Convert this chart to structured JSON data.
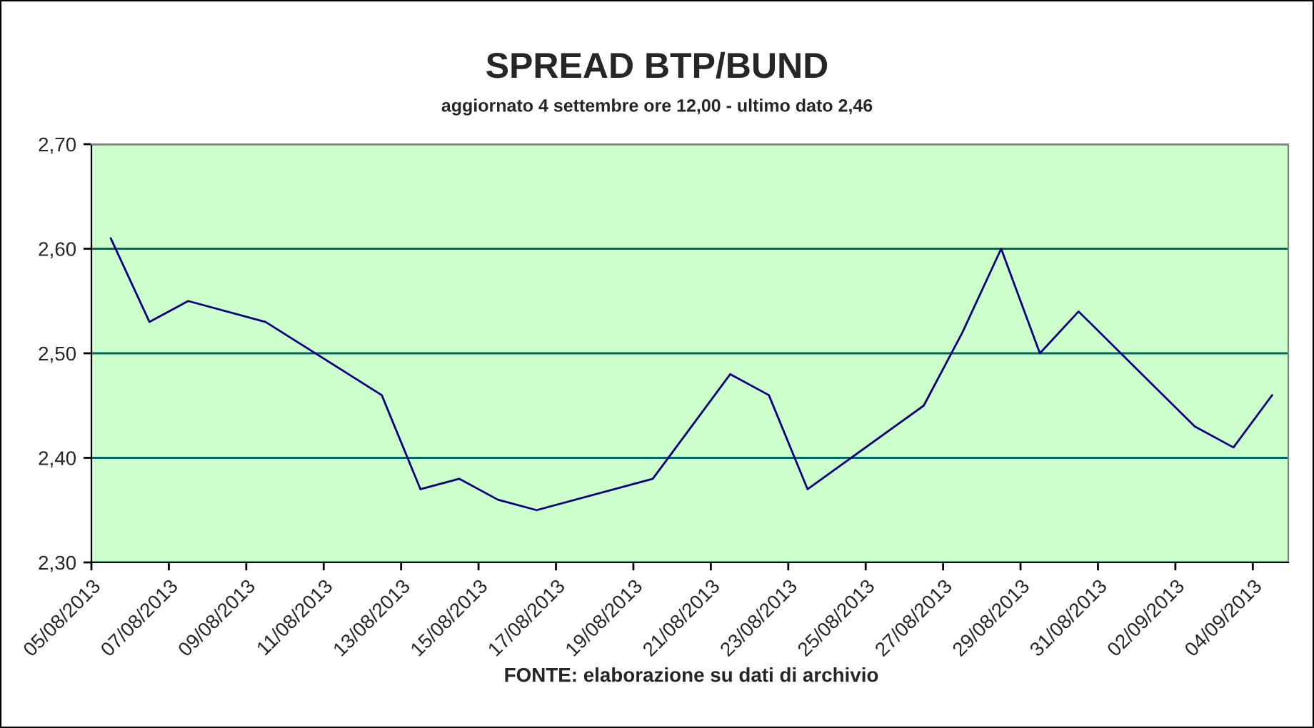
{
  "chart_data": {
    "type": "line",
    "title": "SPREAD BTP/BUND",
    "subtitle": "aggiornato 4 settembre ore 12,00 - ultimo dato 2,46",
    "annotations": [
      "FONTE: elaborazione su dati di archivio"
    ],
    "series": [
      {
        "color": "#000080",
        "x": [
          "2013-08-05T12:00",
          "2013-08-06T12:00",
          "2013-08-07T12:00",
          "2013-08-09T12:00",
          "2013-08-12T12:00",
          "2013-08-13T12:00",
          "2013-08-14T12:00",
          "2013-08-15T12:00",
          "2013-08-16T12:00",
          "2013-08-19T12:00",
          "2013-08-20T12:00",
          "2013-08-21T12:00",
          "2013-08-22T12:00",
          "2013-08-23T12:00",
          "2013-08-26T12:00",
          "2013-08-27T12:00",
          "2013-08-28T12:00",
          "2013-08-29T12:00",
          "2013-08-30T12:00",
          "2013-09-02T12:00",
          "2013-09-03T12:00",
          "2013-09-04T12:00"
        ],
        "values": [
          2.61,
          2.53,
          2.55,
          2.53,
          2.46,
          2.37,
          2.38,
          2.36,
          2.35,
          2.38,
          2.43,
          2.48,
          2.46,
          2.37,
          2.45,
          2.52,
          2.6,
          2.5,
          2.54,
          2.43,
          2.41,
          2.46
        ]
      }
    ],
    "xlim": [
      "2013-08-05",
      "2013-09-04T22:00"
    ],
    "xticks": [
      {
        "value": "2013-08-05",
        "label": "05/08/2013"
      },
      {
        "value": "2013-08-07",
        "label": "07/08/2013"
      },
      {
        "value": "2013-08-09",
        "label": "09/08/2013"
      },
      {
        "value": "2013-08-11",
        "label": "11/08/2013"
      },
      {
        "value": "2013-08-13",
        "label": "13/08/2013"
      },
      {
        "value": "2013-08-15",
        "label": "15/08/2013"
      },
      {
        "value": "2013-08-17",
        "label": "17/08/2013"
      },
      {
        "value": "2013-08-19",
        "label": "19/08/2013"
      },
      {
        "value": "2013-08-21",
        "label": "21/08/2013"
      },
      {
        "value": "2013-08-23",
        "label": "23/08/2013"
      },
      {
        "value": "2013-08-25",
        "label": "25/08/2013"
      },
      {
        "value": "2013-08-27",
        "label": "27/08/2013"
      },
      {
        "value": "2013-08-29",
        "label": "29/08/2013"
      },
      {
        "value": "2013-08-31",
        "label": "31/08/2013"
      },
      {
        "value": "2013-09-02",
        "label": "02/09/2013"
      },
      {
        "value": "2013-09-04",
        "label": "04/09/2013"
      }
    ],
    "ylim": [
      2.3,
      2.7
    ],
    "yticks": [
      {
        "value": 2.3,
        "label": "2,30"
      },
      {
        "value": 2.4,
        "label": "2,40"
      },
      {
        "value": 2.5,
        "label": "2,50"
      },
      {
        "value": 2.6,
        "label": "2,60"
      },
      {
        "value": 2.7,
        "label": "2,70"
      }
    ],
    "grid": "y",
    "legend": false,
    "marker": "none",
    "line_style": "solid"
  }
}
